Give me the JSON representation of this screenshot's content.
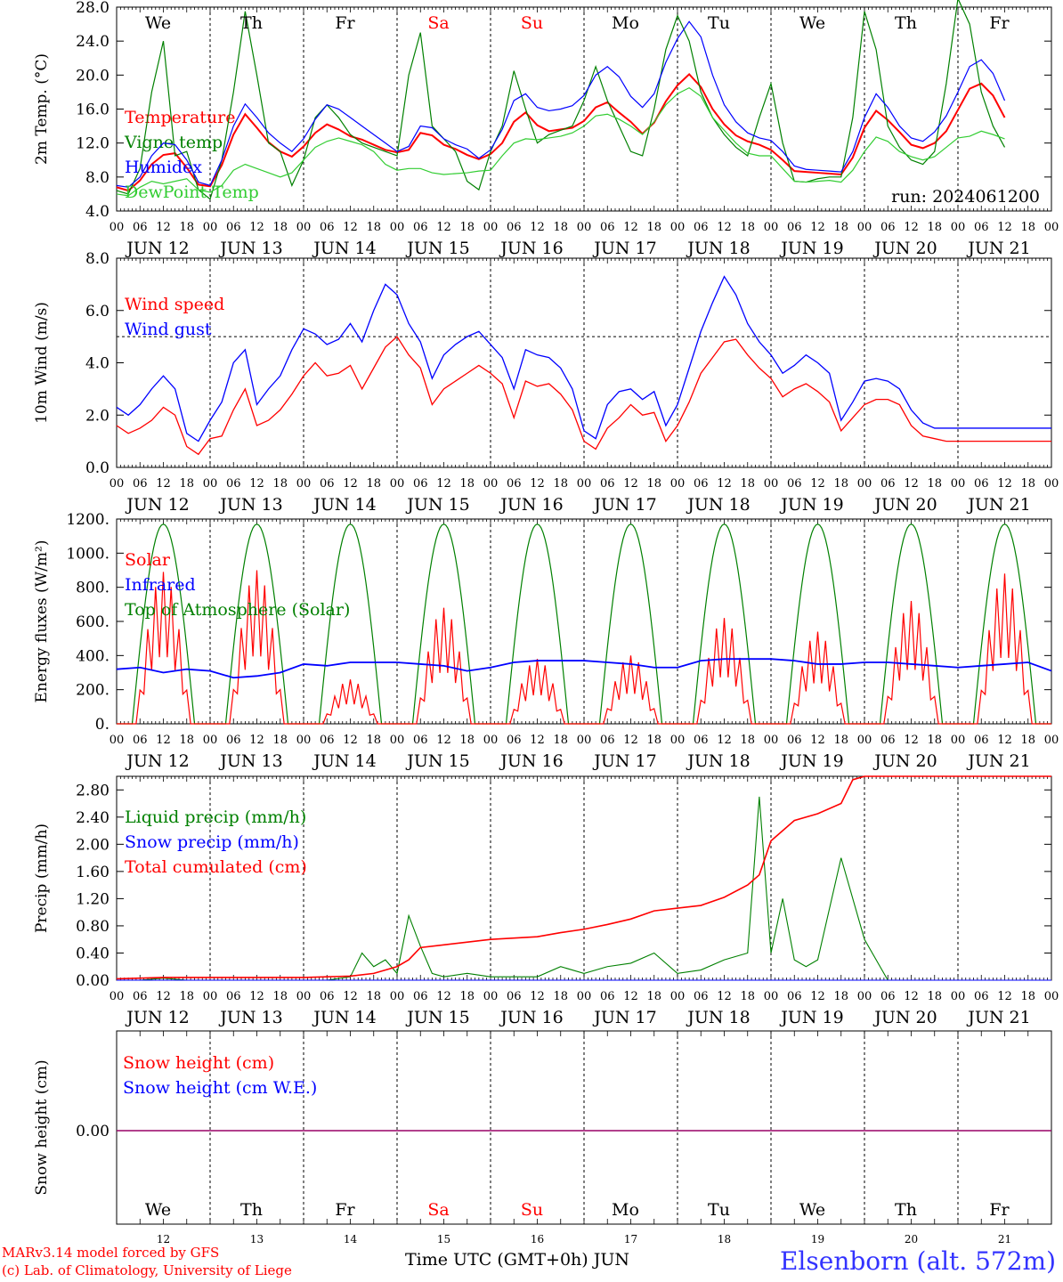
{
  "day_tick_labels": [
    "00",
    "06",
    "12",
    "18"
  ],
  "date_labels": [
    "JUN 12",
    "JUN 13",
    "JUN 14",
    "JUN 15",
    "JUN 16",
    "JUN 17",
    "JUN 18",
    "JUN 19",
    "JUN 20",
    "JUN 21"
  ],
  "weekday_labels": [
    {
      "text": "We",
      "color": "#000000"
    },
    {
      "text": "Th",
      "color": "#000000"
    },
    {
      "text": "Fr",
      "color": "#000000"
    },
    {
      "text": "Sa",
      "color": "#ff0000"
    },
    {
      "text": "Su",
      "color": "#ff0000"
    },
    {
      "text": "Mo",
      "color": "#000000"
    },
    {
      "text": "Tu",
      "color": "#000000"
    },
    {
      "text": "We",
      "color": "#000000"
    },
    {
      "text": "Th",
      "color": "#000000"
    },
    {
      "text": "Fr",
      "color": "#000000"
    }
  ],
  "bottom_day_numbers": [
    "12",
    "13",
    "14",
    "15",
    "16",
    "17",
    "18",
    "19",
    "20",
    "21"
  ],
  "footer": {
    "model_line": "MARv3.14 model forced by GFS",
    "credit_line": "(c) Lab. of Climatology, University of Liege",
    "axis_title": "Time UTC (GMT+0h) JUN",
    "station": "Elsenborn (alt. 572m)"
  },
  "chart_data": [
    {
      "id": "temperature",
      "type": "line",
      "ylabel": "2m Temp. (°C)",
      "ylim": [
        4.0,
        28.0
      ],
      "yticks": [
        4.0,
        8.0,
        12.0,
        16.0,
        20.0,
        24.0,
        28.0
      ],
      "ytick_labels": [
        "4.0",
        "8.0",
        "12.0",
        "16.0",
        "20.0",
        "24.0",
        "28.0"
      ],
      "annotation": "run: 2024061200",
      "x_hours": [
        0,
        3,
        6,
        9,
        12,
        15,
        18,
        21,
        24,
        27,
        30,
        33,
        36,
        39,
        42,
        45,
        48,
        51,
        54,
        57,
        60,
        63,
        66,
        69,
        72,
        75,
        78,
        81,
        84,
        87,
        90,
        93,
        96,
        99,
        102,
        105,
        108,
        111,
        114,
        117,
        120,
        123,
        126,
        129,
        132,
        135,
        138,
        141,
        144,
        147,
        150,
        153,
        156,
        159,
        162,
        165,
        168,
        171,
        174,
        177,
        180,
        183,
        186,
        189,
        192,
        195,
        198,
        201,
        204,
        207,
        210,
        213,
        216,
        219,
        222,
        225,
        228,
        231,
        234,
        237,
        240
      ],
      "series": [
        {
          "name": "Temperature",
          "color": "#ff0000",
          "values": [
            6.8,
            6.4,
            7.6,
            9.5,
            10.6,
            10.8,
            9.1,
            7.1,
            6.9,
            9.4,
            13.0,
            15.4,
            13.8,
            12.1,
            11.0,
            10.4,
            11.6,
            13.2,
            14.2,
            13.6,
            12.8,
            12.4,
            11.8,
            11.2,
            10.9,
            11.2,
            13.2,
            12.9,
            11.8,
            11.3,
            10.6,
            10.1,
            10.7,
            12.0,
            14.5,
            15.6,
            14.1,
            13.4,
            13.6,
            13.8,
            14.6,
            16.2,
            16.8,
            15.6,
            14.5,
            13.1,
            14.4,
            16.9,
            18.8,
            20.1,
            18.6,
            16.0,
            14.2,
            12.9,
            12.2,
            11.8,
            11.2,
            10.0,
            8.7,
            8.6,
            8.5,
            8.4,
            8.3,
            10.3,
            13.8,
            15.8,
            14.7,
            13.3,
            11.8,
            11.4,
            12.0,
            13.4,
            15.9,
            18.4,
            19.0,
            17.6,
            15.0
          ]
        },
        {
          "name": "Vigne temp",
          "color": "#008000",
          "values": [
            6.4,
            6.0,
            9.0,
            18.0,
            24.0,
            10.5,
            11.0,
            6.5,
            5.4,
            10.0,
            18.0,
            27.5,
            20.0,
            12.0,
            11.0,
            7.0,
            10.0,
            15.0,
            16.5,
            15.0,
            13.0,
            12.0,
            11.5,
            11.0,
            10.5,
            20.0,
            25.0,
            14.0,
            12.5,
            11.0,
            7.5,
            6.5,
            11.0,
            14.0,
            20.5,
            16.0,
            12.0,
            13.0,
            13.5,
            14.0,
            17.0,
            21.0,
            17.0,
            14.0,
            11.0,
            10.5,
            16.0,
            23.0,
            27.0,
            24.0,
            18.0,
            15.0,
            13.0,
            11.5,
            10.5,
            15.0,
            19.0,
            12.0,
            7.5,
            7.4,
            7.8,
            8.0,
            8.0,
            15.0,
            27.5,
            23.0,
            14.0,
            11.5,
            10.0,
            9.5,
            11.0,
            19.0,
            29.0,
            26.0,
            18.0,
            14.0,
            11.5
          ]
        },
        {
          "name": "Humidex",
          "color": "#0000ff",
          "values": [
            7.0,
            6.8,
            8.0,
            10.5,
            12.0,
            11.8,
            10.0,
            7.4,
            7.0,
            10.0,
            14.0,
            16.6,
            15.0,
            13.2,
            12.0,
            11.0,
            12.5,
            14.8,
            16.5,
            16.0,
            15.0,
            14.0,
            13.0,
            12.0,
            11.0,
            11.6,
            14.0,
            13.8,
            12.5,
            11.8,
            11.3,
            10.2,
            11.2,
            13.6,
            17.0,
            17.8,
            16.2,
            15.8,
            16.0,
            16.4,
            17.6,
            20.0,
            21.0,
            19.8,
            17.5,
            16.2,
            17.8,
            21.5,
            24.3,
            26.3,
            24.5,
            20.0,
            16.5,
            14.5,
            13.2,
            12.6,
            12.3,
            11.0,
            9.3,
            8.9,
            8.8,
            8.7,
            8.6,
            11.0,
            15.0,
            17.8,
            16.2,
            14.0,
            12.6,
            12.2,
            13.3,
            15.2,
            18.0,
            21.0,
            21.8,
            20.2,
            17.0
          ]
        },
        {
          "name": "DewPoint Temp",
          "color": "#32cd32",
          "values": [
            6.0,
            5.8,
            6.8,
            7.5,
            7.2,
            7.5,
            7.8,
            6.5,
            6.2,
            7.0,
            8.8,
            9.5,
            9.0,
            8.5,
            8.0,
            8.5,
            10.0,
            11.5,
            12.2,
            12.6,
            12.2,
            11.8,
            11.0,
            9.5,
            8.8,
            9.0,
            9.0,
            8.5,
            8.3,
            8.4,
            8.5,
            8.7,
            8.8,
            10.5,
            12.0,
            12.5,
            12.4,
            12.6,
            12.8,
            13.2,
            14.0,
            15.2,
            15.4,
            14.8,
            14.0,
            13.0,
            14.5,
            16.5,
            17.8,
            18.5,
            17.5,
            15.0,
            13.5,
            12.0,
            10.8,
            10.5,
            10.5,
            9.0,
            7.5,
            7.4,
            7.5,
            7.6,
            7.4,
            8.8,
            11.0,
            12.7,
            12.2,
            11.0,
            10.4,
            10.0,
            10.4,
            11.5,
            12.6,
            12.8,
            13.4,
            13.0,
            12.5
          ]
        }
      ]
    },
    {
      "id": "wind",
      "type": "line",
      "ylabel": "10m Wind (m/s)",
      "ylim": [
        0.0,
        8.0
      ],
      "yticks": [
        0.0,
        2.0,
        4.0,
        6.0,
        8.0
      ],
      "ytick_labels": [
        "0.0",
        "2.0",
        "4.0",
        "6.0",
        "8.0"
      ],
      "reference_line": 5.0,
      "x_hours": [
        0,
        3,
        6,
        9,
        12,
        15,
        18,
        21,
        24,
        27,
        30,
        33,
        36,
        39,
        42,
        45,
        48,
        51,
        54,
        57,
        60,
        63,
        66,
        69,
        72,
        75,
        78,
        81,
        84,
        87,
        90,
        93,
        96,
        99,
        102,
        105,
        108,
        111,
        114,
        117,
        120,
        123,
        126,
        129,
        132,
        135,
        138,
        141,
        144,
        147,
        150,
        153,
        156,
        159,
        162,
        165,
        168,
        171,
        174,
        177,
        180,
        183,
        186,
        189,
        192,
        195,
        198,
        201,
        204,
        207,
        210,
        213,
        216,
        219,
        222,
        225,
        228,
        231,
        234,
        237,
        240
      ],
      "series": [
        {
          "name": "Wind speed",
          "color": "#ff0000",
          "values": [
            1.6,
            1.3,
            1.5,
            1.8,
            2.3,
            2.0,
            0.8,
            0.5,
            1.1,
            1.2,
            2.2,
            3.0,
            1.6,
            1.8,
            2.2,
            2.8,
            3.5,
            4.0,
            3.5,
            3.6,
            3.9,
            3.0,
            3.8,
            4.6,
            5.0,
            4.3,
            3.8,
            2.4,
            3.0,
            3.3,
            3.6,
            3.9,
            3.6,
            3.2,
            1.9,
            3.3,
            3.1,
            3.2,
            2.8,
            2.2,
            1.0,
            0.7,
            1.5,
            1.9,
            2.4,
            2.0,
            2.1,
            1.0,
            1.6,
            2.5,
            3.6,
            4.2,
            4.8,
            4.9,
            4.3,
            3.8,
            3.4,
            2.7,
            3.0,
            3.2,
            2.9,
            2.5,
            1.4,
            1.9,
            2.4,
            2.6,
            2.6,
            2.4,
            1.6,
            1.2,
            1.1,
            1.0,
            1.0,
            1.0,
            1.0,
            1.0,
            1.0,
            1.0,
            1.0,
            1.0,
            1.0
          ]
        },
        {
          "name": "Wind gust",
          "color": "#0000ff",
          "values": [
            2.3,
            2.0,
            2.4,
            3.0,
            3.5,
            3.0,
            1.3,
            1.0,
            1.8,
            2.5,
            4.0,
            4.5,
            2.4,
            3.0,
            3.5,
            4.5,
            5.3,
            5.1,
            4.7,
            4.9,
            5.5,
            4.8,
            6.0,
            7.0,
            6.6,
            5.5,
            4.8,
            3.4,
            4.3,
            4.7,
            5.0,
            5.2,
            4.7,
            4.2,
            3.0,
            4.5,
            4.3,
            4.2,
            3.8,
            3.0,
            1.4,
            1.1,
            2.4,
            2.9,
            3.0,
            2.6,
            2.9,
            1.6,
            2.4,
            3.8,
            5.2,
            6.3,
            7.3,
            6.6,
            5.5,
            4.8,
            4.3,
            3.6,
            3.9,
            4.3,
            4.0,
            3.6,
            1.8,
            2.5,
            3.3,
            3.4,
            3.3,
            3.0,
            2.2,
            1.7,
            1.5,
            1.5,
            1.5,
            1.5,
            1.5,
            1.5,
            1.5,
            1.5,
            1.5,
            1.5,
            1.5
          ]
        }
      ]
    },
    {
      "id": "energy",
      "type": "line",
      "ylabel": "Energy fluxes (W/m²)",
      "ylim": [
        0,
        1200
      ],
      "yticks": [
        0,
        200,
        400,
        600,
        800,
        1000,
        1200
      ],
      "ytick_labels": [
        "0.",
        "200.",
        "400.",
        "600.",
        "800.",
        "1000.",
        "1200."
      ],
      "toa_peak": 1170,
      "daylight_hours": [
        4,
        20
      ],
      "solar_peaks": [
        890,
        900,
        260,
        680,
        380,
        400,
        620,
        540,
        720,
        880
      ],
      "series": [
        {
          "name": "Solar",
          "color": "#ff0000"
        },
        {
          "name": "Infrared",
          "color": "#0000ff",
          "values": [
            320,
            330,
            300,
            320,
            310,
            270,
            280,
            300,
            350,
            340,
            360,
            360,
            360,
            350,
            340,
            310,
            330,
            360,
            370,
            370,
            370,
            360,
            350,
            330,
            330,
            370,
            380,
            380,
            380,
            370,
            350,
            350,
            360,
            360,
            350,
            340,
            330,
            340,
            350,
            360,
            310
          ]
        },
        {
          "name": "Top of Atmosphere (Solar)",
          "color": "#008000"
        }
      ]
    },
    {
      "id": "precip",
      "type": "line",
      "ylabel": "Precip (mm/h)",
      "ylim": [
        0.0,
        3.0
      ],
      "yticks": [
        0.0,
        0.4,
        0.8,
        1.2,
        1.6,
        2.0,
        2.4,
        2.8
      ],
      "ytick_labels": [
        "0.00",
        "0.40",
        "0.80",
        "1.20",
        "1.60",
        "2.00",
        "2.40",
        "2.80"
      ],
      "x_hours": [
        0,
        6,
        12,
        18,
        24,
        30,
        36,
        42,
        48,
        54,
        60,
        63,
        66,
        69,
        72,
        75,
        78,
        81,
        84,
        90,
        96,
        102,
        108,
        114,
        120,
        126,
        132,
        138,
        144,
        150,
        156,
        162,
        165,
        168,
        171,
        174,
        177,
        180,
        186,
        192,
        198,
        204,
        210,
        216,
        222,
        228,
        234,
        240
      ],
      "series": [
        {
          "name": "Liquid precip (mm/h)",
          "color": "#008000",
          "values": [
            0,
            0,
            0.03,
            0,
            0,
            0,
            0,
            0,
            0,
            0,
            0.05,
            0.4,
            0.2,
            0.3,
            0.1,
            0.95,
            0.5,
            0.1,
            0.05,
            0.1,
            0.05,
            0.05,
            0.05,
            0.2,
            0.1,
            0.2,
            0.25,
            0.4,
            0.1,
            0.15,
            0.3,
            0.4,
            2.7,
            0.4,
            1.2,
            0.3,
            0.2,
            0.3,
            1.8,
            0.6,
            0,
            0,
            0,
            0,
            0,
            0,
            0,
            0
          ]
        },
        {
          "name": "Snow precip (mm/h)",
          "color": "#0000ff",
          "values": [
            0,
            0,
            0,
            0,
            0,
            0,
            0,
            0,
            0,
            0,
            0,
            0,
            0,
            0,
            0,
            0,
            0,
            0,
            0,
            0,
            0,
            0,
            0,
            0,
            0,
            0,
            0,
            0,
            0,
            0,
            0,
            0,
            0,
            0,
            0,
            0,
            0,
            0,
            0,
            0,
            0,
            0,
            0,
            0,
            0,
            0,
            0,
            0
          ]
        },
        {
          "name": "Total cumulated (cm)",
          "color": "#ff0000",
          "x_hours": [
            0,
            12,
            24,
            48,
            54,
            60,
            66,
            72,
            75,
            78,
            84,
            96,
            102,
            108,
            114,
            120,
            126,
            132,
            138,
            144,
            150,
            156,
            162,
            165,
            168,
            174,
            180,
            186,
            189,
            192,
            240
          ],
          "values": [
            0.02,
            0.04,
            0.04,
            0.04,
            0.05,
            0.06,
            0.1,
            0.2,
            0.3,
            0.48,
            0.52,
            0.6,
            0.62,
            0.64,
            0.7,
            0.75,
            0.82,
            0.9,
            1.02,
            1.06,
            1.1,
            1.22,
            1.4,
            1.55,
            2.05,
            2.35,
            2.45,
            2.6,
            2.95,
            3.0,
            3.0
          ]
        }
      ]
    },
    {
      "id": "snow",
      "type": "line",
      "ylabel": "Snow height (cm)",
      "yticks": [
        0.0
      ],
      "ytick_labels": [
        "0.00"
      ],
      "series": [
        {
          "name": "Snow height (cm)",
          "color": "#ff0000",
          "values": [
            0,
            0
          ]
        },
        {
          "name": "Snow height (cm W.E.)",
          "color": "#0000ff",
          "values": [
            0,
            0
          ]
        }
      ]
    }
  ]
}
